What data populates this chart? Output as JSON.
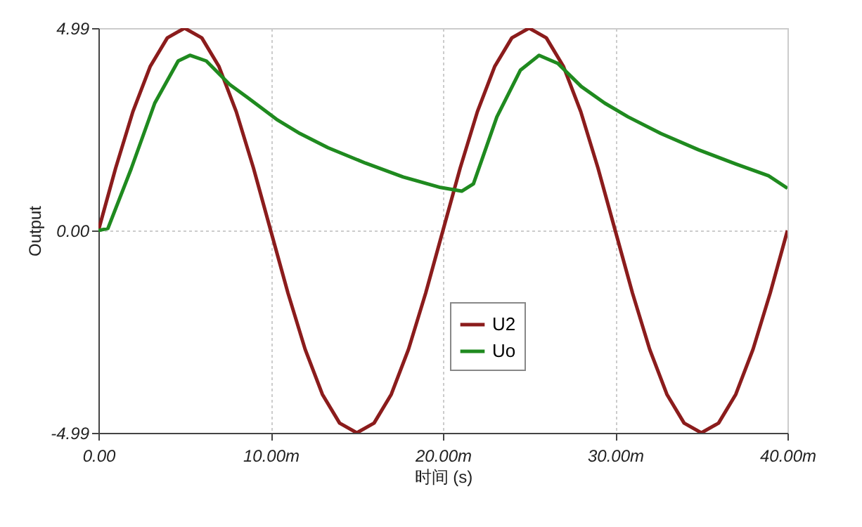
{
  "chart_data": {
    "type": "line",
    "xlabel": "时间 (s)",
    "ylabel": "Output",
    "xlim": [
      0,
      40
    ],
    "xticks": [
      {
        "value": 0,
        "label": "0.00"
      },
      {
        "value": 10,
        "label": "10.00m"
      },
      {
        "value": 20,
        "label": "20.00m"
      },
      {
        "value": 30,
        "label": "30.00m"
      },
      {
        "value": 40,
        "label": "40.00m"
      }
    ],
    "ylim": [
      -4.99,
      4.99
    ],
    "yticks": [
      -4.99,
      {
        "value": 0,
        "label": "0.00"
      },
      4.99
    ],
    "grid": true,
    "legend": "bottom",
    "line_style": "solid",
    "series": [
      {
        "name": "U2",
        "color": "#8b1c1c",
        "x": [
          0,
          1,
          2,
          3,
          4,
          5,
          6,
          7,
          8,
          9,
          10,
          11,
          12,
          13,
          14,
          15,
          16,
          17,
          18,
          19,
          20,
          21,
          22,
          23,
          24,
          25,
          26,
          27,
          28,
          29,
          30,
          31,
          32,
          33,
          34,
          35,
          36,
          37,
          38,
          39,
          40
        ],
        "values": [
          0,
          1.54,
          2.93,
          4.04,
          4.75,
          4.99,
          4.75,
          4.04,
          2.93,
          1.54,
          0,
          -1.54,
          -2.93,
          -4.04,
          -4.75,
          -4.99,
          -4.75,
          -4.04,
          -2.93,
          -1.54,
          0,
          1.54,
          2.93,
          4.04,
          4.75,
          4.99,
          4.75,
          4.04,
          2.93,
          1.54,
          0,
          -1.54,
          -2.93,
          -4.04,
          -4.75,
          -4.99,
          -4.75,
          -4.04,
          -2.93,
          -1.54,
          0
        ]
      },
      {
        "name": "Uo",
        "color": "#1f8a1f",
        "x": [
          0,
          0.55,
          1.9,
          3.27,
          4.63,
          5.31,
          6.26,
          7.62,
          8.71,
          10.34,
          11.7,
          13.33,
          15.51,
          17.69,
          19.86,
          21.09,
          21.77,
          23.13,
          24.49,
          25.58,
          26.67,
          28.03,
          29.39,
          30.75,
          32.65,
          34.83,
          37,
          38.9,
          40
        ],
        "values": [
          0,
          0.05,
          1.52,
          3.14,
          4.18,
          4.32,
          4.18,
          3.6,
          3.26,
          2.74,
          2.39,
          2.04,
          1.66,
          1.32,
          1.06,
          0.97,
          1.15,
          2.8,
          3.95,
          4.32,
          4.12,
          3.55,
          3.14,
          2.8,
          2.39,
          1.99,
          1.64,
          1.35,
          1.04
        ]
      }
    ]
  }
}
